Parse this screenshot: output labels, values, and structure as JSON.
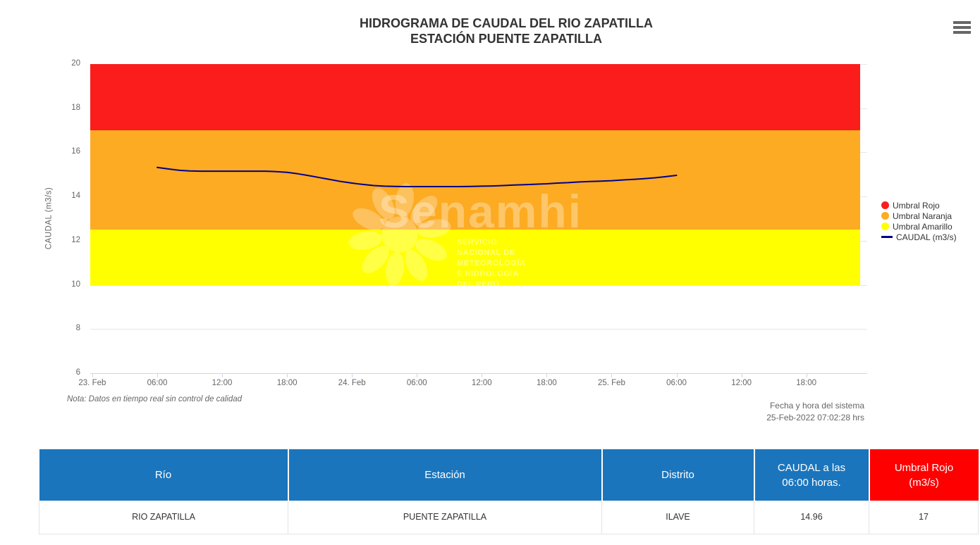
{
  "header": {
    "title_line1": "HIDROGRAMA DE CAUDAL DEL RIO ZAPATILLA",
    "title_line2": "ESTACIÓN PUENTE ZAPATILLA"
  },
  "menu": {
    "icon": "hamburger-icon"
  },
  "chart_data": {
    "type": "line",
    "title": "HIDROGRAMA DE CAUDAL DEL RIO ZAPATILLA - ESTACIÓN PUENTE ZAPATILLA",
    "ylabel": "CAUDAL (m3/s)",
    "ylim": [
      6,
      20
    ],
    "yticks": [
      20,
      18,
      16,
      14,
      12,
      10,
      8,
      6
    ],
    "grid": true,
    "x_unit": "hours since 23-Feb-2022 00:00",
    "xlim": [
      -0.2,
      71.0
    ],
    "xticks": [
      {
        "t": 0,
        "label": "23. Feb"
      },
      {
        "t": 6,
        "label": "06:00"
      },
      {
        "t": 12,
        "label": "12:00"
      },
      {
        "t": 18,
        "label": "18:00"
      },
      {
        "t": 24,
        "label": "24. Feb"
      },
      {
        "t": 30,
        "label": "06:00"
      },
      {
        "t": 36,
        "label": "12:00"
      },
      {
        "t": 42,
        "label": "18:00"
      },
      {
        "t": 48,
        "label": "25. Feb"
      },
      {
        "t": 54,
        "label": "06:00"
      },
      {
        "t": 60,
        "label": "12:00"
      },
      {
        "t": 66,
        "label": "18:00"
      }
    ],
    "plot_bands": [
      {
        "name": "Umbral Rojo",
        "from": 17,
        "to": 20,
        "color": "#fb1c1c"
      },
      {
        "name": "Umbral Naranja",
        "from": 12.5,
        "to": 17,
        "color": "#fcab22"
      },
      {
        "name": "Umbral Amarillo",
        "from": 10,
        "to": 12.5,
        "color": "#ffff00"
      }
    ],
    "series": [
      {
        "name": "CAUDAL (m3/s)",
        "color": "#00008b",
        "points": [
          [
            6,
            15.32
          ],
          [
            7,
            15.25
          ],
          [
            8,
            15.19
          ],
          [
            9,
            15.16
          ],
          [
            10,
            15.15
          ],
          [
            11,
            15.15
          ],
          [
            12,
            15.15
          ],
          [
            13,
            15.15
          ],
          [
            14,
            15.15
          ],
          [
            15,
            15.15
          ],
          [
            16,
            15.15
          ],
          [
            17,
            15.13
          ],
          [
            18,
            15.1
          ],
          [
            19,
            15.03
          ],
          [
            20,
            14.95
          ],
          [
            21,
            14.86
          ],
          [
            22,
            14.77
          ],
          [
            23,
            14.68
          ],
          [
            24,
            14.61
          ],
          [
            25,
            14.55
          ],
          [
            26,
            14.5
          ],
          [
            27,
            14.47
          ],
          [
            28,
            14.46
          ],
          [
            29,
            14.45
          ],
          [
            30,
            14.45
          ],
          [
            31,
            14.45
          ],
          [
            32,
            14.45
          ],
          [
            33,
            14.45
          ],
          [
            34,
            14.45
          ],
          [
            35,
            14.46
          ],
          [
            36,
            14.47
          ],
          [
            37,
            14.48
          ],
          [
            38,
            14.5
          ],
          [
            39,
            14.52
          ],
          [
            40,
            14.54
          ],
          [
            41,
            14.56
          ],
          [
            42,
            14.58
          ],
          [
            43,
            14.61
          ],
          [
            44,
            14.63
          ],
          [
            45,
            14.66
          ],
          [
            46,
            14.68
          ],
          [
            47,
            14.7
          ],
          [
            48,
            14.72
          ],
          [
            49,
            14.75
          ],
          [
            50,
            14.78
          ],
          [
            51,
            14.81
          ],
          [
            52,
            14.85
          ],
          [
            53,
            14.9
          ],
          [
            54,
            14.96
          ]
        ]
      }
    ],
    "legend_position": "right",
    "legend": [
      {
        "label": "Umbral Rojo",
        "marker": "circle",
        "color": "#fb1c1c"
      },
      {
        "label": "Umbral Naranja",
        "marker": "circle",
        "color": "#fcab22"
      },
      {
        "label": "Umbral Amarillo",
        "marker": "circle",
        "color": "#ffff00"
      },
      {
        "label": "CAUDAL (m3/s)",
        "marker": "line",
        "color": "#00008b"
      }
    ]
  },
  "watermark": {
    "brand": "Senamhi",
    "sun_icon": "senamhi-sun-icon",
    "subtitle_line1": "SERVICIO NACIONAL DE METEOROLOGÍA",
    "subtitle_line2": "E HIDROLOGÍA DEL PERÚ"
  },
  "note": "Nota: Datos en tiempo real sin control de calidad",
  "system_time": {
    "line1": "Fecha y hora del sistema",
    "line2": "25-Feb-2022 07:02:28 hrs"
  },
  "table": {
    "header_color": "#1b75bc",
    "headers": [
      {
        "line1": "Río",
        "line2": "",
        "background": "#1b75bc"
      },
      {
        "line1": "Estación",
        "line2": "",
        "background": "#1b75bc"
      },
      {
        "line1": "Distrito",
        "line2": "",
        "background": "#1b75bc"
      },
      {
        "line1": "CAUDAL a las",
        "line2": "06:00 horas.",
        "background": "#1b75bc"
      },
      {
        "line1": "Umbral Rojo",
        "line2": "(m3/s)",
        "background": "#fe0000"
      }
    ],
    "rows": [
      [
        "RIO ZAPATILLA",
        "PUENTE ZAPATILLA",
        "ILAVE",
        "14.96",
        "17"
      ]
    ]
  }
}
